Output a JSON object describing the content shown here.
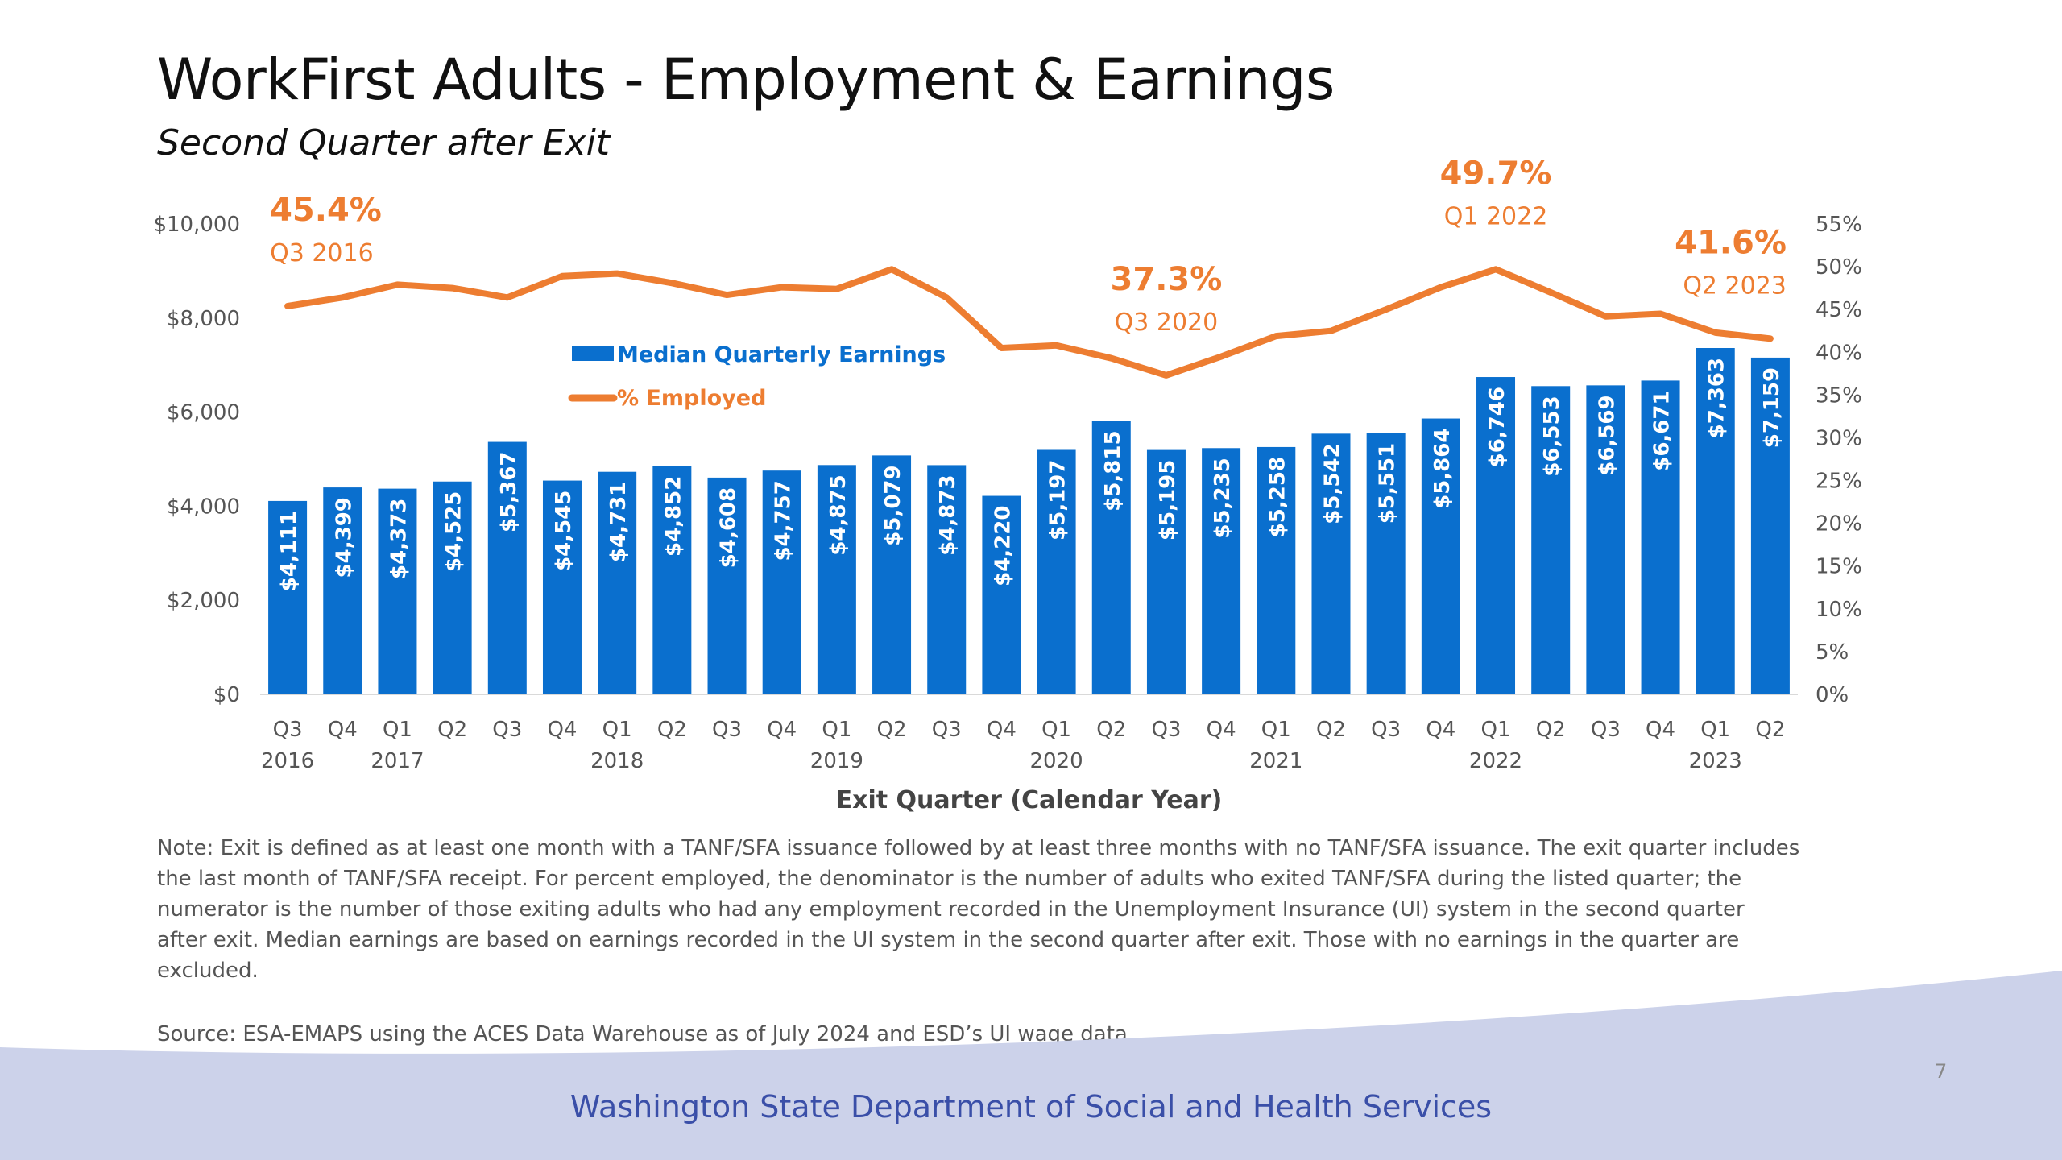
{
  "slide": {
    "title": "WorkFirst Adults - Employment & Earnings",
    "subtitle": "Second Quarter after Exit",
    "note": "Note: Exit is defined as at least one month with a TANF/SFA issuance followed by at least three months with no TANF/SFA issuance. The exit quarter includes the last month of TANF/SFA receipt. For percent employed, the denominator is the number of adults who exited TANF/SFA during the listed quarter; the numerator is the number of those exiting adults who had any employment recorded in the Unemployment Insurance (UI) system in the second quarter after exit. Median earnings are based on earnings recorded in the UI system in the second quarter after exit. Those with no earnings in the quarter are excluded.",
    "source": "Source: ESA-EMAPS using the ACES Data Warehouse as of July 2024 and ESD’s UI wage data",
    "footer": "Washington State Department of Social and Health Services",
    "page_number": "7"
  },
  "colors": {
    "bar": "#0a6fce",
    "line": "#ed7d31",
    "footer_band": "#ccd2ea",
    "footer_text": "#3a4fa8"
  },
  "chart_data": {
    "type": "bar+line",
    "categories": [
      "Q3",
      "Q4",
      "Q1",
      "Q2",
      "Q3",
      "Q4",
      "Q1",
      "Q2",
      "Q3",
      "Q4",
      "Q1",
      "Q2",
      "Q3",
      "Q4",
      "Q1",
      "Q2",
      "Q3",
      "Q4",
      "Q1",
      "Q2",
      "Q3",
      "Q4",
      "Q1",
      "Q2",
      "Q3",
      "Q4",
      "Q1",
      "Q2"
    ],
    "year_labels": [
      {
        "index": 0,
        "label": "2016"
      },
      {
        "index": 2,
        "label": "2017"
      },
      {
        "index": 6,
        "label": "2018"
      },
      {
        "index": 10,
        "label": "2019"
      },
      {
        "index": 14,
        "label": "2020"
      },
      {
        "index": 18,
        "label": "2021"
      },
      {
        "index": 22,
        "label": "2022"
      },
      {
        "index": 26,
        "label": "2023"
      }
    ],
    "xlabel": "Exit Quarter (Calendar Year)",
    "series": [
      {
        "name": "Median Quarterly Earnings",
        "type": "bar",
        "axis": "left",
        "values": [
          4111,
          4399,
          4373,
          4525,
          5367,
          4545,
          4731,
          4852,
          4608,
          4757,
          4875,
          5079,
          4873,
          4220,
          5197,
          5815,
          5195,
          5235,
          5258,
          5542,
          5551,
          5864,
          6746,
          6553,
          6569,
          6671,
          7363,
          7159
        ],
        "labels": [
          "$4,111",
          "$4,399",
          "$4,373",
          "$4,525",
          "$5,367",
          "$4,545",
          "$4,731",
          "$4,852",
          "$4,608",
          "$4,757",
          "$4,875",
          "$5,079",
          "$4,873",
          "$4,220",
          "$5,197",
          "$5,815",
          "$5,195",
          "$5,235",
          "$5,258",
          "$5,542",
          "$5,551",
          "$5,864",
          "$6,746",
          "$6,553",
          "$6,569",
          "$6,671",
          "$7,363",
          "$7,159"
        ]
      },
      {
        "name": "% Employed",
        "type": "line",
        "axis": "right",
        "values": [
          45.4,
          46.4,
          47.9,
          47.5,
          46.4,
          48.9,
          49.2,
          48.1,
          46.7,
          47.6,
          47.4,
          49.7,
          46.4,
          40.5,
          40.8,
          39.3,
          37.3,
          39.5,
          41.9,
          42.5,
          45.0,
          47.6,
          49.7,
          47.0,
          44.2,
          44.5,
          42.3,
          41.6
        ]
      }
    ],
    "y_left": {
      "min": 0,
      "max": 10000,
      "ticks": [
        "$0",
        "$2,000",
        "$4,000",
        "$6,000",
        "$8,000",
        "$10,000"
      ]
    },
    "y_right": {
      "min": 0,
      "max": 55,
      "ticks": [
        "0%",
        "5%",
        "10%",
        "15%",
        "20%",
        "25%",
        "30%",
        "35%",
        "40%",
        "45%",
        "50%",
        "55%"
      ]
    },
    "annotations": [
      {
        "index": 0,
        "value": "45.4%",
        "label": "Q3 2016",
        "anchor": "start"
      },
      {
        "index": 16,
        "value": "37.3%",
        "label": "Q3 2020",
        "anchor": "middle"
      },
      {
        "index": 22,
        "value": "49.7%",
        "label": "Q1 2022",
        "anchor": "middle"
      },
      {
        "index": 27,
        "value": "41.6%",
        "label": "Q2 2023",
        "anchor": "end"
      }
    ],
    "legend_position": "upper-left inside plot",
    "grid": false
  }
}
